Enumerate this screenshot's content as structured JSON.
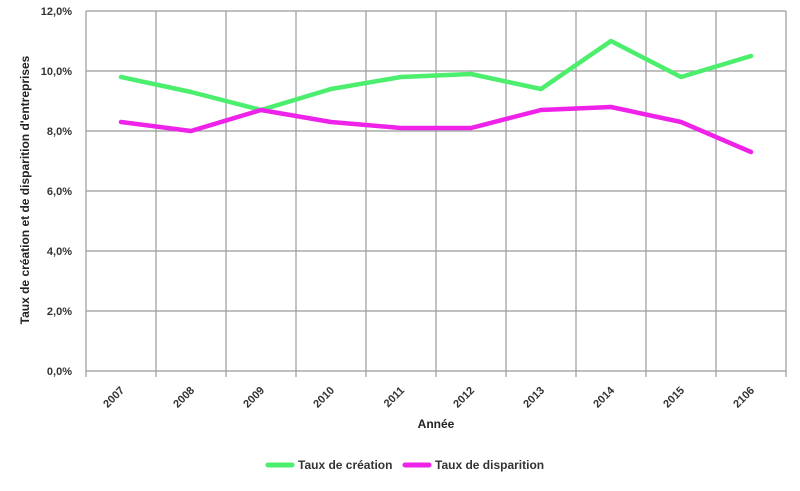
{
  "chart_data": {
    "type": "line",
    "categories": [
      "2007",
      "2008",
      "2009",
      "2010",
      "2011",
      "2012",
      "2013",
      "2014",
      "2015",
      "2106"
    ],
    "series": [
      {
        "name": "Taux de création",
        "color": "#4cee6e",
        "values": [
          9.8,
          9.3,
          8.7,
          9.4,
          9.8,
          9.9,
          9.4,
          11.0,
          9.8,
          10.5
        ]
      },
      {
        "name": "Taux de disparition",
        "color": "#ee22e8",
        "values": [
          8.3,
          8.0,
          8.7,
          8.3,
          8.1,
          8.1,
          8.7,
          8.8,
          8.3,
          7.3
        ]
      }
    ],
    "yticks": [
      "0,0%",
      "2,0%",
      "4,0%",
      "6,0%",
      "8,0%",
      "10,0%",
      "12,0%"
    ],
    "ylim": [
      0,
      12
    ],
    "xlabel": "Année",
    "ylabel": "Taux de création et de disparition d'entreprises",
    "grid": true,
    "legend_position": "bottom"
  }
}
